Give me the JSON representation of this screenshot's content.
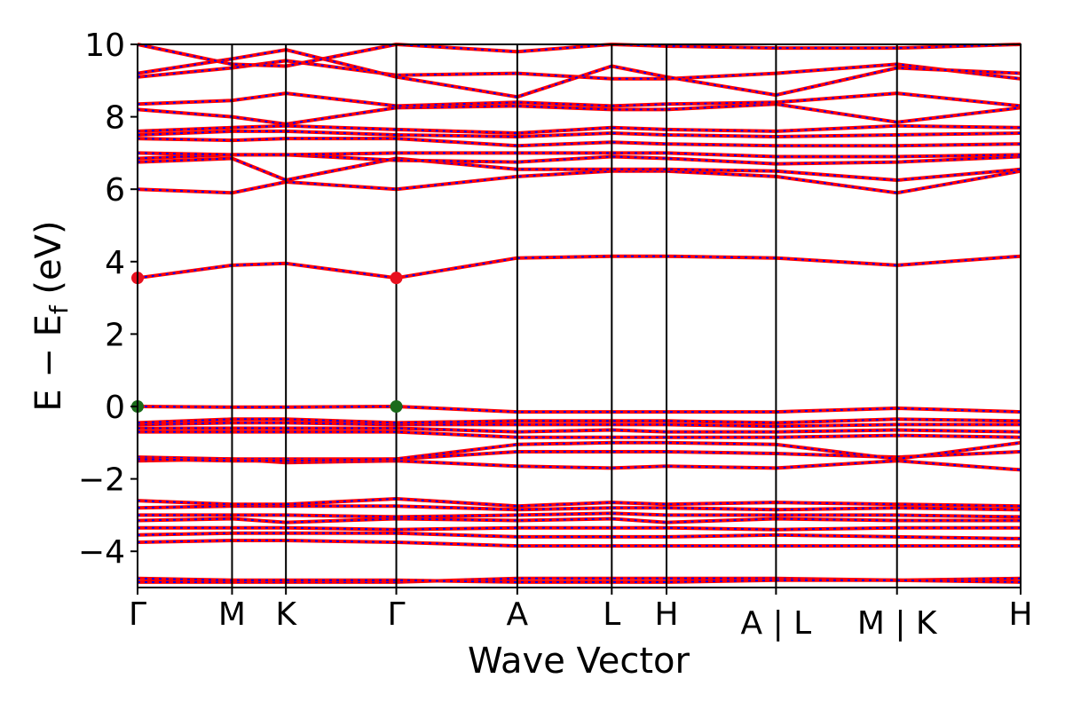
{
  "chart_data": {
    "type": "line",
    "title": "",
    "xlabel": "Wave Vector",
    "ylabel_main": "E − E",
    "ylabel_sub": "f",
    "ylabel_unit": " (eV)",
    "ylim": [
      -5,
      10
    ],
    "yticks": [
      -4,
      -2,
      0,
      2,
      4,
      6,
      8,
      10
    ],
    "ytick_labels": [
      "−4",
      "−2",
      "0",
      "2",
      "4",
      "6",
      "8",
      "10"
    ],
    "kpoints": [
      {
        "label": "Γ",
        "x": 0.0
      },
      {
        "label": "M",
        "x": 0.107
      },
      {
        "label": "K",
        "x": 0.168
      },
      {
        "label": "Γ",
        "x": 0.293
      },
      {
        "label": "A",
        "x": 0.43
      },
      {
        "label": "L",
        "x": 0.537
      },
      {
        "label": "H",
        "x": 0.599
      },
      {
        "label": "A | L",
        "x": 0.723
      },
      {
        "label": "M | K",
        "x": 0.86
      },
      {
        "label": "H",
        "x": 1.0
      }
    ],
    "legend": "none",
    "grid": false,
    "band_colors": {
      "primary": "#ff0000",
      "secondary": "#0000ff"
    },
    "markers": [
      {
        "x": 0.0,
        "y": 3.55,
        "color": "#e8101f"
      },
      {
        "x": 0.293,
        "y": 3.55,
        "color": "#e8101f"
      },
      {
        "x": 0.0,
        "y": 0.0,
        "color": "#1a6b1a"
      },
      {
        "x": 0.293,
        "y": 0.0,
        "color": "#1a6b1a"
      }
    ],
    "series": [
      {
        "x": [
          0,
          0.107,
          0.168,
          0.293,
          0.43,
          0.537,
          0.599,
          0.723,
          0.86,
          1.0
        ],
        "values": [
          -4.85,
          -4.85,
          -4.85,
          -4.85,
          -4.75,
          -4.75,
          -4.75,
          -4.75,
          -4.8,
          -4.75
        ]
      },
      {
        "x": [
          0,
          0.107,
          0.168,
          0.293,
          0.43,
          0.537,
          0.599,
          0.723,
          0.86,
          1.0
        ],
        "values": [
          -4.75,
          -4.8,
          -4.8,
          -4.8,
          -4.85,
          -4.85,
          -4.85,
          -4.8,
          -4.8,
          -4.85
        ]
      },
      {
        "x": [
          0,
          0.107,
          0.168,
          0.293,
          0.43,
          0.537,
          0.599,
          0.723,
          0.86,
          1.0
        ],
        "values": [
          -3.75,
          -3.7,
          -3.7,
          -3.75,
          -3.85,
          -3.85,
          -3.85,
          -3.85,
          -3.85,
          -3.85
        ]
      },
      {
        "x": [
          0,
          0.107,
          0.168,
          0.293,
          0.43,
          0.537,
          0.599,
          0.723,
          0.86,
          1.0
        ],
        "values": [
          -3.55,
          -3.5,
          -3.5,
          -3.5,
          -3.6,
          -3.6,
          -3.6,
          -3.55,
          -3.6,
          -3.65
        ]
      },
      {
        "x": [
          0,
          0.107,
          0.168,
          0.293,
          0.43,
          0.537,
          0.599,
          0.723,
          0.86,
          1.0
        ],
        "values": [
          -3.35,
          -3.35,
          -3.35,
          -3.4,
          -3.35,
          -3.35,
          -3.35,
          -3.4,
          -3.35,
          -3.35
        ]
      },
      {
        "x": [
          0,
          0.107,
          0.168,
          0.293,
          0.43,
          0.537,
          0.599,
          0.723,
          0.86,
          1.0
        ],
        "values": [
          -3.15,
          -3.1,
          -3.2,
          -3.1,
          -3.15,
          -3.1,
          -3.2,
          -3.1,
          -3.15,
          -3.15
        ]
      },
      {
        "x": [
          0,
          0.107,
          0.168,
          0.293,
          0.43,
          0.537,
          0.599,
          0.723,
          0.86,
          1.0
        ],
        "values": [
          -3.0,
          -3.0,
          -3.0,
          -3.05,
          -3.0,
          -2.95,
          -3.0,
          -3.0,
          -3.0,
          -3.05
        ]
      },
      {
        "x": [
          0,
          0.107,
          0.168,
          0.293,
          0.43,
          0.537,
          0.599,
          0.723,
          0.86,
          1.0
        ],
        "values": [
          -2.8,
          -2.75,
          -2.75,
          -2.75,
          -2.85,
          -2.8,
          -2.8,
          -2.85,
          -2.8,
          -2.85
        ]
      },
      {
        "x": [
          0,
          0.107,
          0.168,
          0.293,
          0.43,
          0.537,
          0.599,
          0.723,
          0.86,
          1.0
        ],
        "values": [
          -2.6,
          -2.7,
          -2.7,
          -2.55,
          -2.75,
          -2.65,
          -2.7,
          -2.65,
          -2.7,
          -2.75
        ]
      },
      {
        "x": [
          0,
          0.107,
          0.168,
          0.293,
          0.43,
          0.537,
          0.599,
          0.723,
          0.86,
          1.0
        ],
        "values": [
          -1.5,
          -1.45,
          -1.55,
          -1.5,
          -1.65,
          -1.7,
          -1.65,
          -1.7,
          -1.5,
          -1.75
        ]
      },
      {
        "x": [
          0,
          0.107,
          0.168,
          0.293,
          0.43,
          0.537,
          0.599,
          0.723,
          0.86,
          1.0
        ],
        "values": [
          -1.4,
          -1.45,
          -1.45,
          -1.45,
          -1.25,
          -1.25,
          -1.25,
          -1.3,
          -1.4,
          -1.25
        ]
      },
      {
        "x": [
          0,
          0.107,
          0.168,
          0.293,
          0.43,
          0.537,
          0.599,
          0.723,
          0.86,
          1.0
        ],
        "values": [
          -1.45,
          -1.5,
          -1.5,
          -1.45,
          -1.05,
          -1.0,
          -1.0,
          -1.05,
          -1.45,
          -1.0
        ]
      },
      {
        "x": [
          0,
          0.107,
          0.168,
          0.293,
          0.43,
          0.537,
          0.599,
          0.723,
          0.86,
          1.0
        ],
        "values": [
          -0.7,
          -0.7,
          -0.7,
          -0.7,
          -0.85,
          -0.85,
          -0.85,
          -0.85,
          -0.8,
          -0.85
        ]
      },
      {
        "x": [
          0,
          0.107,
          0.168,
          0.293,
          0.43,
          0.537,
          0.599,
          0.723,
          0.86,
          1.0
        ],
        "values": [
          -0.6,
          -0.6,
          -0.6,
          -0.6,
          -0.7,
          -0.65,
          -0.7,
          -0.7,
          -0.65,
          -0.7
        ]
      },
      {
        "x": [
          0,
          0.107,
          0.168,
          0.293,
          0.43,
          0.537,
          0.599,
          0.723,
          0.86,
          1.0
        ],
        "values": [
          -0.5,
          -0.45,
          -0.45,
          -0.5,
          -0.5,
          -0.5,
          -0.5,
          -0.55,
          -0.5,
          -0.5
        ]
      },
      {
        "x": [
          0,
          0.107,
          0.168,
          0.293,
          0.43,
          0.537,
          0.599,
          0.723,
          0.86,
          1.0
        ],
        "values": [
          -0.45,
          -0.35,
          -0.35,
          -0.45,
          -0.4,
          -0.4,
          -0.4,
          -0.45,
          -0.35,
          -0.4
        ]
      },
      {
        "x": [
          0,
          0.107,
          0.168,
          0.293,
          0.43,
          0.537,
          0.599,
          0.723,
          0.86,
          1.0
        ],
        "values": [
          0.0,
          -0.02,
          -0.02,
          0.0,
          -0.15,
          -0.15,
          -0.15,
          -0.15,
          -0.05,
          -0.15
        ]
      },
      {
        "x": [
          0,
          0.107,
          0.168,
          0.293,
          0.43,
          0.537,
          0.599,
          0.723,
          0.86,
          1.0
        ],
        "values": [
          3.55,
          3.9,
          3.95,
          3.55,
          4.1,
          4.15,
          4.15,
          4.1,
          3.9,
          4.15
        ]
      },
      {
        "x": [
          0,
          0.107,
          0.168,
          0.293,
          0.43,
          0.537,
          0.599,
          0.723,
          0.86,
          1.0
        ],
        "values": [
          6.0,
          5.9,
          6.2,
          6.0,
          6.35,
          6.5,
          6.5,
          6.35,
          5.9,
          6.5
        ]
      },
      {
        "x": [
          0,
          0.107,
          0.168,
          0.293,
          0.43,
          0.537,
          0.599,
          0.723,
          0.86,
          1.0
        ],
        "values": [
          6.75,
          6.85,
          6.25,
          6.85,
          6.55,
          6.55,
          6.55,
          6.5,
          6.25,
          6.55
        ]
      },
      {
        "x": [
          0,
          0.107,
          0.168,
          0.293,
          0.43,
          0.537,
          0.599,
          0.723,
          0.86,
          1.0
        ],
        "values": [
          6.85,
          6.95,
          6.95,
          6.8,
          6.75,
          6.9,
          6.85,
          6.7,
          6.75,
          6.9
        ]
      },
      {
        "x": [
          0,
          0.107,
          0.168,
          0.293,
          0.43,
          0.537,
          0.599,
          0.723,
          0.86,
          1.0
        ],
        "values": [
          7.0,
          6.95,
          6.95,
          7.0,
          7.0,
          7.0,
          7.0,
          6.9,
          6.9,
          6.95
        ]
      },
      {
        "x": [
          0,
          0.107,
          0.168,
          0.293,
          0.43,
          0.537,
          0.599,
          0.723,
          0.86,
          1.0
        ],
        "values": [
          7.4,
          7.35,
          7.4,
          7.4,
          7.2,
          7.3,
          7.25,
          7.2,
          7.2,
          7.25
        ]
      },
      {
        "x": [
          0,
          0.107,
          0.168,
          0.293,
          0.43,
          0.537,
          0.599,
          0.723,
          0.86,
          1.0
        ],
        "values": [
          7.5,
          7.6,
          7.6,
          7.5,
          7.45,
          7.55,
          7.5,
          7.45,
          7.5,
          7.55
        ]
      },
      {
        "x": [
          0,
          0.107,
          0.168,
          0.293,
          0.43,
          0.537,
          0.599,
          0.723,
          0.86,
          1.0
        ],
        "values": [
          7.6,
          7.7,
          7.75,
          7.65,
          7.55,
          7.7,
          7.65,
          7.6,
          7.75,
          7.7
        ]
      },
      {
        "x": [
          0,
          0.107,
          0.168,
          0.293,
          0.43,
          0.537,
          0.599,
          0.723,
          0.86,
          1.0
        ],
        "values": [
          8.2,
          8.0,
          7.8,
          8.25,
          8.3,
          8.2,
          8.2,
          8.35,
          7.85,
          8.25
        ]
      },
      {
        "x": [
          0,
          0.107,
          0.168,
          0.293,
          0.43,
          0.537,
          0.599,
          0.723,
          0.86,
          1.0
        ],
        "values": [
          8.35,
          8.45,
          8.65,
          8.3,
          8.4,
          8.3,
          8.35,
          8.4,
          8.65,
          8.3
        ]
      },
      {
        "x": [
          0,
          0.107,
          0.168,
          0.293,
          0.43,
          0.537,
          0.599,
          0.723,
          0.86,
          1.0
        ],
        "values": [
          9.1,
          9.35,
          9.55,
          9.15,
          9.2,
          9.05,
          9.05,
          9.2,
          9.45,
          9.05
        ]
      },
      {
        "x": [
          0,
          0.107,
          0.168,
          0.293,
          0.43,
          0.537,
          0.599,
          0.723,
          0.86,
          1.0
        ],
        "values": [
          9.2,
          9.6,
          9.85,
          9.1,
          8.55,
          9.4,
          9.1,
          8.6,
          9.35,
          9.2
        ]
      },
      {
        "x": [
          0,
          0.107,
          0.168,
          0.293,
          0.43,
          0.537,
          0.599,
          0.723,
          0.86,
          1.0
        ],
        "values": [
          10.0,
          9.45,
          9.4,
          10.0,
          9.8,
          10.0,
          9.95,
          9.9,
          9.9,
          10.0
        ]
      }
    ]
  }
}
